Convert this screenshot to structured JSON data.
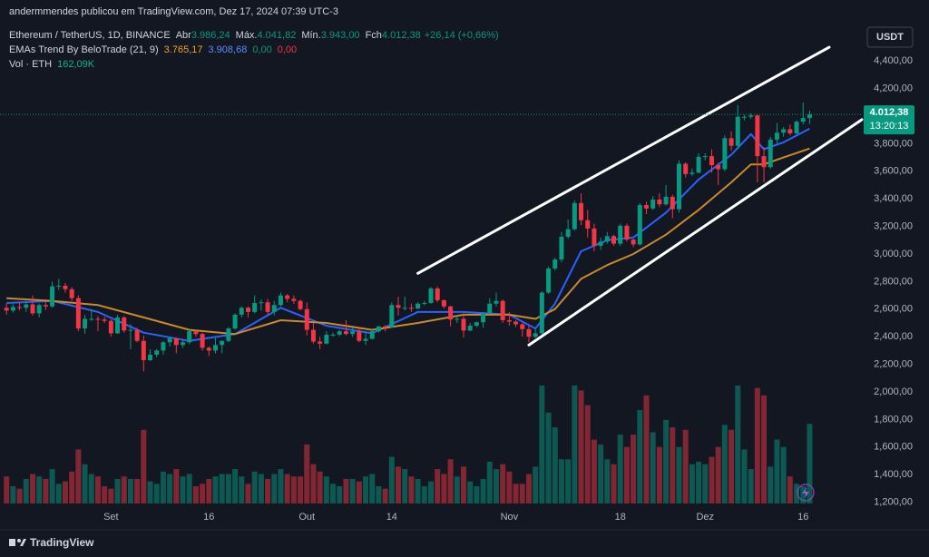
{
  "header": {
    "text": "andermmendes publicou em TradingView.com, Dez 17, 2024 07:39 UTC-3"
  },
  "legend": {
    "symbol": "Ethereum / TetherUS, 1D, BINANCE",
    "open_label": "Abr",
    "open": "3.986,24",
    "high_label": "Máx.",
    "high": "4.041,82",
    "low_label": "Mín.",
    "low": "3.943,00",
    "close_label": "Fch",
    "close": "4.012,38",
    "change": "+26,14 (+0,66%)",
    "indicator": "EMAs Trend By BeloTrade (21, 9)",
    "ema_slow": "3.765,17",
    "ema_fast": "3.908,68",
    "extra_1": "0,00",
    "extra_2": "0,00",
    "volume": "Vol · ETH",
    "volume_value": "162,09K"
  },
  "currency": "USDT",
  "price_label": {
    "price": "4.012,38",
    "countdown": "13:20:13"
  },
  "footer": {
    "brand": "TradingView"
  },
  "chart_data": {
    "type": "candlestick",
    "up_color": "#089981",
    "down_color": "#f23645",
    "xlim": [
      "2024-08-15",
      "2024-12-25"
    ],
    "xticks": [
      {
        "value": "2024-09-01",
        "label": "Set"
      },
      {
        "value": "2024-09-16",
        "label": "16"
      },
      {
        "value": "2024-10-01",
        "label": "Out"
      },
      {
        "value": "2024-10-14",
        "label": "14"
      },
      {
        "value": "2024-11-01",
        "label": "Nov"
      },
      {
        "value": "2024-11-18",
        "label": "18"
      },
      {
        "value": "2024-12-01",
        "label": "Dez"
      },
      {
        "value": "2024-12-16",
        "label": "16"
      }
    ],
    "ylim": [
      1125,
      4645
    ],
    "yticks": [
      {
        "value": 1200,
        "label": "1,200,00"
      },
      {
        "value": 1400,
        "label": "1,400,00"
      },
      {
        "value": 1600,
        "label": "1,600,00"
      },
      {
        "value": 1800,
        "label": "1,800,00"
      },
      {
        "value": 2000,
        "label": "2,000,00"
      },
      {
        "value": 2200,
        "label": "2,200,00"
      },
      {
        "value": 2400,
        "label": "2,400,00"
      },
      {
        "value": 2600,
        "label": "2,600,00"
      },
      {
        "value": 2800,
        "label": "2,800,00"
      },
      {
        "value": 3000,
        "label": "3,000,00"
      },
      {
        "value": 3200,
        "label": "3,200,00"
      },
      {
        "value": 3400,
        "label": "3,400,00"
      },
      {
        "value": 3600,
        "label": "3,600,00"
      },
      {
        "value": 3800,
        "label": "3,800,00"
      },
      {
        "value": 4200,
        "label": "4,200,00"
      },
      {
        "value": 4400,
        "label": "4,400,00"
      }
    ],
    "grid": false,
    "vlim": [
      0,
      240
    ],
    "x": [
      "2024-08-16",
      "2024-08-17",
      "2024-08-18",
      "2024-08-19",
      "2024-08-20",
      "2024-08-21",
      "2024-08-22",
      "2024-08-23",
      "2024-08-24",
      "2024-08-25",
      "2024-08-26",
      "2024-08-27",
      "2024-08-28",
      "2024-08-29",
      "2024-08-30",
      "2024-08-31",
      "2024-09-01",
      "2024-09-02",
      "2024-09-03",
      "2024-09-04",
      "2024-09-05",
      "2024-09-06",
      "2024-09-07",
      "2024-09-08",
      "2024-09-09",
      "2024-09-10",
      "2024-09-11",
      "2024-09-12",
      "2024-09-13",
      "2024-09-14",
      "2024-09-15",
      "2024-09-16",
      "2024-09-17",
      "2024-09-18",
      "2024-09-19",
      "2024-09-20",
      "2024-09-21",
      "2024-09-22",
      "2024-09-23",
      "2024-09-24",
      "2024-09-25",
      "2024-09-26",
      "2024-09-27",
      "2024-09-28",
      "2024-09-29",
      "2024-09-30",
      "2024-10-01",
      "2024-10-02",
      "2024-10-03",
      "2024-10-04",
      "2024-10-05",
      "2024-10-06",
      "2024-10-07",
      "2024-10-08",
      "2024-10-09",
      "2024-10-10",
      "2024-10-11",
      "2024-10-12",
      "2024-10-13",
      "2024-10-14",
      "2024-10-15",
      "2024-10-16",
      "2024-10-17",
      "2024-10-18",
      "2024-10-19",
      "2024-10-20",
      "2024-10-21",
      "2024-10-22",
      "2024-10-23",
      "2024-10-24",
      "2024-10-25",
      "2024-10-26",
      "2024-10-27",
      "2024-10-28",
      "2024-10-29",
      "2024-10-30",
      "2024-10-31",
      "2024-11-01",
      "2024-11-02",
      "2024-11-03",
      "2024-11-04",
      "2024-11-05",
      "2024-11-06",
      "2024-11-07",
      "2024-11-08",
      "2024-11-09",
      "2024-11-10",
      "2024-11-11",
      "2024-11-12",
      "2024-11-13",
      "2024-11-14",
      "2024-11-15",
      "2024-11-16",
      "2024-11-17",
      "2024-11-18",
      "2024-11-19",
      "2024-11-20",
      "2024-11-21",
      "2024-11-22",
      "2024-11-23",
      "2024-11-24",
      "2024-11-25",
      "2024-11-26",
      "2024-11-27",
      "2024-11-28",
      "2024-11-29",
      "2024-11-30",
      "2024-12-01",
      "2024-12-02",
      "2024-12-03",
      "2024-12-04",
      "2024-12-05",
      "2024-12-06",
      "2024-12-07",
      "2024-12-08",
      "2024-12-09",
      "2024-12-10",
      "2024-12-11",
      "2024-12-12",
      "2024-12-13",
      "2024-12-14",
      "2024-12-15",
      "2024-12-16",
      "2024-12-17"
    ],
    "open": [
      2610,
      2590,
      2615,
      2610,
      2635,
      2570,
      2630,
      2620,
      2765,
      2770,
      2745,
      2680,
      2460,
      2530,
      2530,
      2525,
      2515,
      2425,
      2540,
      2445,
      2450,
      2370,
      2230,
      2270,
      2300,
      2360,
      2390,
      2340,
      2360,
      2440,
      2420,
      2320,
      2300,
      2340,
      2370,
      2460,
      2560,
      2610,
      2580,
      2645,
      2650,
      2580,
      2630,
      2700,
      2675,
      2660,
      2600,
      2450,
      2365,
      2350,
      2415,
      2415,
      2440,
      2420,
      2440,
      2370,
      2385,
      2440,
      2475,
      2470,
      2630,
      2610,
      2610,
      2605,
      2640,
      2645,
      2750,
      2665,
      2620,
      2525,
      2530,
      2445,
      2480,
      2505,
      2570,
      2640,
      2660,
      2520,
      2510,
      2490,
      2455,
      2400,
      2425,
      2720,
      2895,
      2960,
      3125,
      3180,
      3370,
      3245,
      3185,
      3060,
      3090,
      3130,
      3075,
      3205,
      3105,
      3070,
      3355,
      3330,
      3395,
      3360,
      3415,
      3325,
      3655,
      3580,
      3590,
      3705,
      3710,
      3645,
      3615,
      3840,
      3785,
      3995,
      3995,
      4005,
      3710,
      3630,
      3830,
      3880,
      3905,
      3875,
      3960,
      3986.24
    ],
    "high": [
      2640,
      2635,
      2650,
      2660,
      2700,
      2640,
      2650,
      2800,
      2820,
      2790,
      2760,
      2700,
      2560,
      2600,
      2550,
      2545,
      2525,
      2560,
      2550,
      2490,
      2465,
      2410,
      2310,
      2310,
      2370,
      2400,
      2390,
      2380,
      2460,
      2450,
      2430,
      2330,
      2390,
      2375,
      2470,
      2570,
      2620,
      2620,
      2700,
      2670,
      2675,
      2660,
      2720,
      2710,
      2700,
      2670,
      2650,
      2500,
      2400,
      2440,
      2430,
      2450,
      2520,
      2465,
      2465,
      2440,
      2460,
      2480,
      2485,
      2650,
      2690,
      2690,
      2640,
      2650,
      2660,
      2760,
      2765,
      2670,
      2625,
      2550,
      2570,
      2500,
      2510,
      2580,
      2680,
      2720,
      2670,
      2580,
      2520,
      2500,
      2480,
      2460,
      2730,
      2910,
      2975,
      3160,
      3250,
      3390,
      3440,
      3320,
      3220,
      3120,
      3160,
      3140,
      3220,
      3220,
      3110,
      3370,
      3380,
      3420,
      3440,
      3500,
      3430,
      3680,
      3665,
      3620,
      3730,
      3730,
      3760,
      3660,
      3860,
      3890,
      4080,
      4010,
      4020,
      4010,
      3775,
      3850,
      3950,
      3920,
      3940,
      3970,
      4100,
      4041.82
    ],
    "low": [
      2560,
      2575,
      2590,
      2580,
      2555,
      2540,
      2595,
      2610,
      2740,
      2720,
      2660,
      2440,
      2420,
      2515,
      2440,
      2500,
      2400,
      2420,
      2430,
      2310,
      2360,
      2150,
      2225,
      2250,
      2270,
      2330,
      2280,
      2320,
      2345,
      2400,
      2300,
      2260,
      2280,
      2280,
      2360,
      2450,
      2540,
      2540,
      2570,
      2590,
      2560,
      2555,
      2620,
      2650,
      2640,
      2590,
      2410,
      2350,
      2310,
      2345,
      2400,
      2405,
      2410,
      2400,
      2360,
      2340,
      2380,
      2430,
      2440,
      2465,
      2555,
      2590,
      2580,
      2600,
      2630,
      2640,
      2650,
      2605,
      2475,
      2500,
      2395,
      2440,
      2470,
      2465,
      2565,
      2620,
      2500,
      2480,
      2470,
      2400,
      2360,
      2390,
      2415,
      2710,
      2880,
      2940,
      3110,
      3170,
      3210,
      3120,
      3020,
      3030,
      3075,
      3060,
      3060,
      3090,
      3050,
      3060,
      3290,
      3320,
      3340,
      3350,
      3260,
      3300,
      3555,
      3565,
      3585,
      3680,
      3590,
      3500,
      3600,
      3750,
      3760,
      3970,
      3980,
      3520,
      3520,
      3620,
      3800,
      3850,
      3860,
      3860,
      3940,
      3943
    ],
    "close": [
      2590,
      2615,
      2610,
      2635,
      2570,
      2630,
      2620,
      2765,
      2770,
      2745,
      2680,
      2460,
      2530,
      2530,
      2525,
      2515,
      2425,
      2540,
      2445,
      2450,
      2370,
      2230,
      2270,
      2300,
      2360,
      2390,
      2340,
      2360,
      2440,
      2420,
      2320,
      2300,
      2340,
      2370,
      2460,
      2560,
      2610,
      2580,
      2645,
      2650,
      2580,
      2630,
      2700,
      2675,
      2660,
      2600,
      2450,
      2365,
      2350,
      2415,
      2415,
      2440,
      2420,
      2440,
      2370,
      2385,
      2440,
      2475,
      2470,
      2630,
      2610,
      2610,
      2605,
      2640,
      2645,
      2750,
      2665,
      2620,
      2525,
      2530,
      2445,
      2480,
      2505,
      2570,
      2640,
      2660,
      2520,
      2510,
      2490,
      2455,
      2400,
      2425,
      2720,
      2895,
      2960,
      3125,
      3180,
      3370,
      3245,
      3185,
      3060,
      3090,
      3130,
      3075,
      3205,
      3105,
      3070,
      3355,
      3330,
      3395,
      3360,
      3415,
      3325,
      3655,
      3580,
      3590,
      3705,
      3710,
      3645,
      3615,
      3840,
      3785,
      3995,
      3995,
      4005,
      3710,
      3630,
      3830,
      3880,
      3905,
      3875,
      3960,
      3986.24,
      4012.38
    ],
    "volume": [
      55,
      35,
      30,
      50,
      60,
      55,
      50,
      70,
      40,
      45,
      65,
      110,
      80,
      60,
      55,
      35,
      30,
      50,
      55,
      50,
      50,
      150,
      45,
      40,
      65,
      60,
      70,
      55,
      60,
      35,
      40,
      50,
      55,
      60,
      60,
      70,
      55,
      40,
      65,
      60,
      50,
      60,
      70,
      60,
      55,
      55,
      120,
      80,
      65,
      55,
      40,
      35,
      50,
      50,
      45,
      55,
      60,
      35,
      30,
      95,
      75,
      70,
      55,
      50,
      35,
      45,
      70,
      60,
      90,
      55,
      75,
      45,
      35,
      50,
      85,
      70,
      80,
      65,
      40,
      40,
      60,
      75,
      240,
      185,
      155,
      90,
      90,
      240,
      230,
      200,
      130,
      120,
      90,
      80,
      140,
      115,
      140,
      190,
      220,
      145,
      115,
      170,
      155,
      115,
      150,
      80,
      85,
      80,
      95,
      115,
      160,
      150,
      240,
      110,
      70,
      235,
      220,
      75,
      130,
      115,
      55,
      40,
      35,
      162.09
    ],
    "volume_value_label": "162,09K",
    "ema_lines": [
      {
        "color": "#2962ff",
        "x": [
          "2024-08-16",
          "2024-08-23",
          "2024-08-30",
          "2024-09-06",
          "2024-09-13",
          "2024-09-20",
          "2024-09-27",
          "2024-10-04",
          "2024-10-11",
          "2024-10-18",
          "2024-10-25",
          "2024-11-01",
          "2024-11-05",
          "2024-11-08",
          "2024-11-12",
          "2024-11-16",
          "2024-11-20",
          "2024-11-25",
          "2024-11-30",
          "2024-12-05",
          "2024-12-08",
          "2024-12-10",
          "2024-12-13",
          "2024-12-17"
        ],
        "values": [
          2645,
          2660,
          2580,
          2430,
          2370,
          2420,
          2610,
          2480,
          2425,
          2580,
          2580,
          2560,
          2460,
          2640,
          3020,
          3100,
          3120,
          3300,
          3540,
          3720,
          3870,
          3760,
          3810,
          3908.68
        ]
      },
      {
        "color": "#c98a2b",
        "x": [
          "2024-08-16",
          "2024-08-23",
          "2024-08-30",
          "2024-09-06",
          "2024-09-13",
          "2024-09-20",
          "2024-09-27",
          "2024-10-04",
          "2024-10-11",
          "2024-10-18",
          "2024-10-25",
          "2024-11-01",
          "2024-11-05",
          "2024-11-08",
          "2024-11-12",
          "2024-11-16",
          "2024-11-20",
          "2024-11-25",
          "2024-11-30",
          "2024-12-05",
          "2024-12-08",
          "2024-12-10",
          "2024-12-13",
          "2024-12-17"
        ],
        "values": [
          2680,
          2660,
          2630,
          2540,
          2450,
          2420,
          2520,
          2500,
          2450,
          2500,
          2560,
          2560,
          2530,
          2600,
          2820,
          2920,
          3000,
          3140,
          3320,
          3520,
          3650,
          3650,
          3700,
          3765.17
        ]
      }
    ],
    "trendlines": [
      {
        "x": [
          "2024-10-18",
          "2024-12-20"
        ],
        "y": [
          2860,
          4500
        ]
      },
      {
        "x": [
          "2024-11-04",
          "2024-12-25"
        ],
        "y": [
          2340,
          3975
        ]
      }
    ]
  }
}
